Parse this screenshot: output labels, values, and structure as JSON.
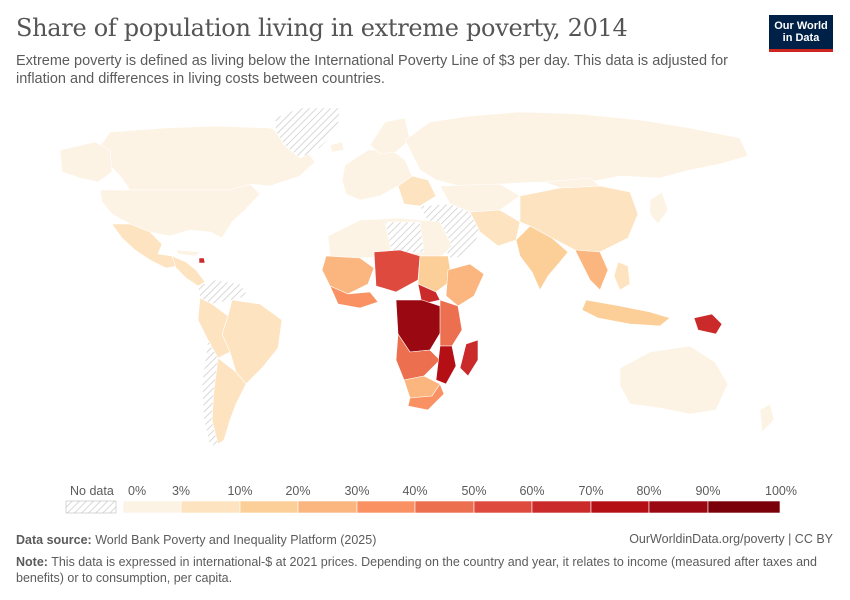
{
  "header": {
    "title": "Share of population living in extreme poverty, 2014",
    "subtitle": "Extreme poverty is defined as living below the International Poverty Line of $3 per day. This data is adjusted for inflation and differences in living costs between countries.",
    "logo_line1": "Our World",
    "logo_line2": "in Data"
  },
  "chart_data": {
    "type": "choropleth-map",
    "title": "Share of population living in extreme poverty, 2014",
    "unit": "%",
    "legend": {
      "no_data_label": "No data",
      "bins": [
        {
          "from": 0,
          "to": 3,
          "color": "#fdf3e5"
        },
        {
          "from": 3,
          "to": 10,
          "color": "#fde3c0"
        },
        {
          "from": 10,
          "to": 20,
          "color": "#fccf98"
        },
        {
          "from": 20,
          "to": 30,
          "color": "#fbb67f"
        },
        {
          "from": 30,
          "to": 40,
          "color": "#f99162"
        },
        {
          "from": 40,
          "to": 50,
          "color": "#ec6f50"
        },
        {
          "from": 50,
          "to": 60,
          "color": "#df4a3e"
        },
        {
          "from": 60,
          "to": 70,
          "color": "#cb2a2a"
        },
        {
          "from": 70,
          "to": 80,
          "color": "#b50f16"
        },
        {
          "from": 80,
          "to": 90,
          "color": "#9a0911"
        },
        {
          "from": 90,
          "to": 100,
          "color": "#7a0009"
        }
      ],
      "tick_labels": [
        "0%",
        "3%",
        "10%",
        "20%",
        "30%",
        "40%",
        "50%",
        "60%",
        "70%",
        "80%",
        "90%",
        "100%"
      ]
    }
  },
  "footer": {
    "source_label": "Data source:",
    "source_text": "World Bank Poverty and Inequality Platform (2025)",
    "url_text": "OurWorldinData.org/poverty | CC BY",
    "note_label": "Note:",
    "note_text": "This data is expressed in international-$ at 2021 prices. Depending on the country and year, it relates to income (measured after taxes and benefits) or to consumption, per capita."
  }
}
